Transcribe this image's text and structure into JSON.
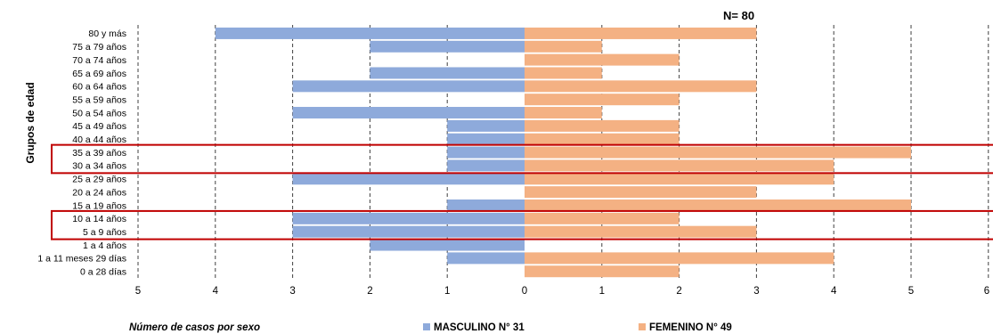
{
  "chart_data": {
    "type": "bar",
    "orientation": "horizontal-pyramid",
    "annotation": "N= 80",
    "ylabel": "Grupos de edad",
    "xlabel": "Número de casos por sexo",
    "categories": [
      "80 y más",
      "75 a 79 años",
      "70 a 74 años",
      "65 a 69 años",
      "60 a 64 años",
      "55 a 59 años",
      "50 a 54 años",
      "45 a 49 años",
      "40 a 44 años",
      "35 a 39 años",
      "30 a 34 años",
      "25 a 29 años",
      "20 a 24 años",
      "15 a 19 años",
      "10 a 14 años",
      "5 a 9 años",
      "1 a 4 años",
      "1 a 11 meses 29 días",
      "0 a 28 días"
    ],
    "series": [
      {
        "name": "MASCULINO N° 31",
        "color": "#8eaadb",
        "values": [
          4,
          2,
          0,
          2,
          3,
          0,
          3,
          1,
          1,
          1,
          1,
          3,
          0,
          1,
          3,
          3,
          2,
          1,
          0
        ]
      },
      {
        "name": "FEMENINO N° 49",
        "color": "#f4b183",
        "values": [
          3,
          1,
          2,
          1,
          3,
          2,
          1,
          2,
          2,
          5,
          4,
          4,
          3,
          5,
          2,
          3,
          0,
          4,
          2
        ]
      }
    ],
    "xticks_left": [
      "5",
      "4",
      "3",
      "2",
      "1"
    ],
    "xticks_right": [
      "0",
      "1",
      "2",
      "3",
      "4",
      "5",
      "6"
    ],
    "xlim": [
      -5,
      6
    ],
    "grid": "vertical dashed",
    "highlight_groups": [
      [
        "35 a 39 años",
        "30 a 34 años"
      ],
      [
        "10 a 14 años",
        "5 a 9 años"
      ]
    ],
    "highlight_color": "#c00000",
    "legend_position": "bottom"
  }
}
